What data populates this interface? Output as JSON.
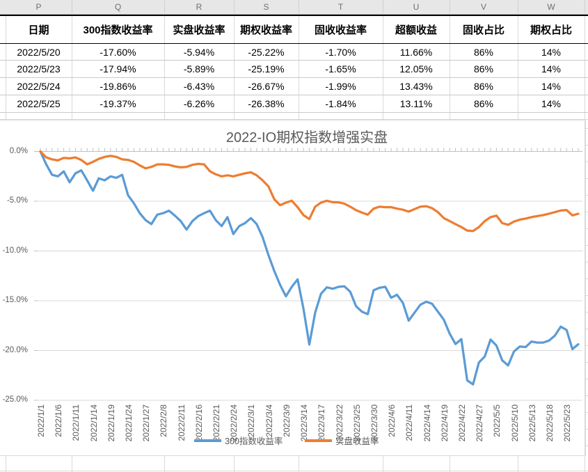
{
  "sheet": {
    "column_letters": [
      "P",
      "Q",
      "R",
      "S",
      "T",
      "U",
      "V",
      "W"
    ],
    "table": {
      "headers": [
        "日期",
        "300指数收益率",
        "实盘收益率",
        "期权收益率",
        "固收收益率",
        "超额收益",
        "固收占比",
        "期权占比"
      ],
      "rows": [
        [
          "2022/5/20",
          "-17.60%",
          "-5.94%",
          "-25.22%",
          "-1.70%",
          "11.66%",
          "86%",
          "14%"
        ],
        [
          "2022/5/23",
          "-17.94%",
          "-5.89%",
          "-25.19%",
          "-1.65%",
          "12.05%",
          "86%",
          "14%"
        ],
        [
          "2022/5/24",
          "-19.86%",
          "-6.43%",
          "-26.67%",
          "-1.99%",
          "13.43%",
          "86%",
          "14%"
        ],
        [
          "2022/5/25",
          "-19.37%",
          "-6.26%",
          "-26.38%",
          "-1.84%",
          "13.11%",
          "86%",
          "14%"
        ]
      ]
    }
  },
  "chart_data": {
    "type": "line",
    "title": "2022-IO期权指数增强实盘",
    "ylim": [
      -25,
      0
    ],
    "y_tick_labels": [
      "0.0%",
      "-5.0%",
      "-10.0%",
      "-15.0%",
      "-20.0%",
      "-25.0%"
    ],
    "grid": true,
    "legend_position": "bottom-center",
    "x_tick_labels": [
      "2022/1/1",
      "2022/1/6",
      "2022/1/11",
      "2022/1/14",
      "2022/1/19",
      "2022/1/24",
      "2022/1/27",
      "2022/2/8",
      "2022/2/11",
      "2022/2/16",
      "2022/2/21",
      "2022/2/24",
      "2022/3/1",
      "2022/3/4",
      "2022/3/9",
      "2022/3/14",
      "2022/3/17",
      "2022/3/22",
      "2022/3/25",
      "2022/3/30",
      "2022/4/6",
      "2022/4/11",
      "2022/4/14",
      "2022/4/19",
      "2022/4/22",
      "2022/4/27",
      "2022/5/5",
      "2022/5/10",
      "2022/5/13",
      "2022/5/18",
      "2022/5/23"
    ],
    "x_label_interval": 3,
    "legend": [
      "300指数收益率",
      "实盘收益率"
    ],
    "series": [
      {
        "name": "300指数收益率",
        "color": "#5B9BD5",
        "values": [
          0.0,
          -1.3,
          -2.35,
          -2.5,
          -2.0,
          -3.1,
          -2.2,
          -1.9,
          -2.9,
          -3.95,
          -2.7,
          -2.9,
          -2.5,
          -2.65,
          -2.35,
          -4.4,
          -5.2,
          -6.2,
          -6.9,
          -7.3,
          -6.35,
          -6.2,
          -5.95,
          -6.45,
          -7.0,
          -7.85,
          -7.0,
          -6.5,
          -6.2,
          -5.95,
          -6.9,
          -7.5,
          -6.6,
          -8.3,
          -7.5,
          -7.2,
          -6.7,
          -7.3,
          -8.6,
          -10.4,
          -12.0,
          -13.4,
          -14.55,
          -13.6,
          -12.85,
          -15.8,
          -19.4,
          -16.2,
          -14.3,
          -13.65,
          -13.8,
          -13.6,
          -13.55,
          -14.1,
          -15.55,
          -16.1,
          -16.35,
          -13.95,
          -13.7,
          -13.6,
          -14.7,
          -14.4,
          -15.2,
          -17.0,
          -16.2,
          -15.4,
          -15.1,
          -15.3,
          -16.1,
          -16.9,
          -18.3,
          -19.35,
          -18.85,
          -23.0,
          -23.4,
          -21.2,
          -20.6,
          -18.9,
          -19.5,
          -21.0,
          -21.5,
          -20.1,
          -19.6,
          -19.65,
          -19.1,
          -19.2,
          -19.2,
          -19.0,
          -18.5,
          -17.6,
          -17.94,
          -19.86,
          -19.37
        ]
      },
      {
        "name": "实盘收益率",
        "color": "#ED7D31",
        "values": [
          0.0,
          -0.6,
          -0.8,
          -0.9,
          -0.65,
          -0.7,
          -0.6,
          -0.85,
          -1.3,
          -1.05,
          -0.75,
          -0.55,
          -0.45,
          -0.55,
          -0.8,
          -0.85,
          -1.05,
          -1.4,
          -1.7,
          -1.55,
          -1.3,
          -1.3,
          -1.35,
          -1.5,
          -1.6,
          -1.55,
          -1.35,
          -1.25,
          -1.3,
          -2.0,
          -2.3,
          -2.5,
          -2.4,
          -2.5,
          -2.35,
          -2.2,
          -2.1,
          -2.4,
          -2.9,
          -3.5,
          -4.8,
          -5.4,
          -5.15,
          -4.95,
          -5.6,
          -6.4,
          -6.8,
          -5.55,
          -5.15,
          -4.95,
          -5.1,
          -5.12,
          -5.25,
          -5.55,
          -5.9,
          -6.15,
          -6.35,
          -5.75,
          -5.55,
          -5.6,
          -5.6,
          -5.75,
          -5.85,
          -6.05,
          -5.8,
          -5.55,
          -5.5,
          -5.7,
          -6.1,
          -6.7,
          -7.0,
          -7.3,
          -7.6,
          -7.95,
          -8.0,
          -7.6,
          -7.0,
          -6.6,
          -6.45,
          -7.2,
          -7.37,
          -7.05,
          -6.85,
          -6.75,
          -6.6,
          -6.5,
          -6.4,
          -6.25,
          -6.1,
          -5.94,
          -5.89,
          -6.43,
          -6.26
        ]
      }
    ]
  },
  "colors": {
    "series_300": "#5B9BD5",
    "series_shipan": "#ED7D31",
    "chart_text": "#595959",
    "gridline": "#D9D9D9",
    "axis_line": "#BFBFBF",
    "table_border": "#000000",
    "header_band_bg": "#E7E7E7"
  }
}
